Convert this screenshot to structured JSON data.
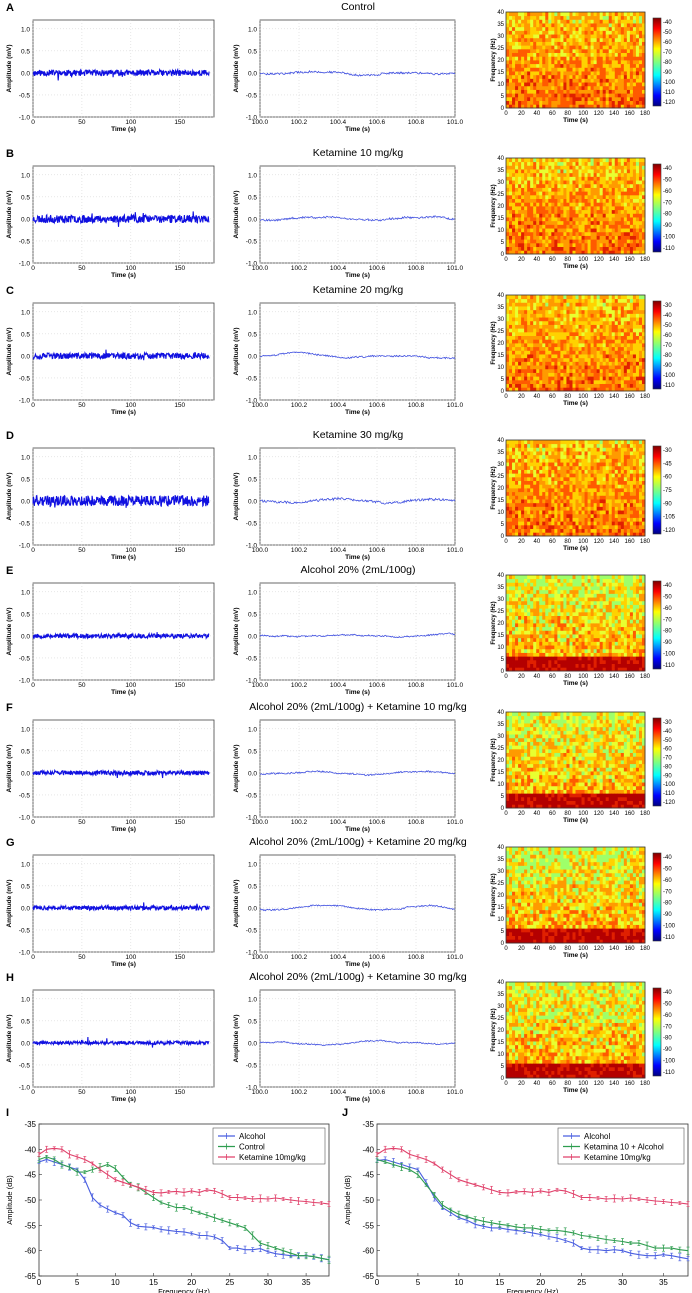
{
  "rows": [
    {
      "letter": "A",
      "title": "Control",
      "cbticks": [
        "-40",
        "-50",
        "-60",
        "-70",
        "-80",
        "-90",
        "-100",
        "-110",
        "-120"
      ],
      "seed": 11,
      "noiseA": 0.07,
      "noiseB": 0.02,
      "wander": 0.02,
      "alcohol": false
    },
    {
      "letter": "B",
      "title": "Ketamine 10 mg/kg",
      "cbticks": [
        "-40",
        "-50",
        "-60",
        "-70",
        "-80",
        "-90",
        "-100",
        "-110"
      ],
      "seed": 23,
      "noiseA": 0.09,
      "noiseB": 0.02,
      "wander": 0.04,
      "alcohol": false
    },
    {
      "letter": "C",
      "title": "Ketamine 20 mg/kg",
      "cbticks": [
        "-30",
        "-40",
        "-50",
        "-60",
        "-70",
        "-80",
        "-90",
        "-100",
        "-110"
      ],
      "seed": 37,
      "noiseA": 0.07,
      "noiseB": 0.015,
      "wander": 0.03,
      "alcohol": false
    },
    {
      "letter": "D",
      "title": "Ketamine 30 mg/kg",
      "cbticks": [
        "-30",
        "-45",
        "-60",
        "-75",
        "-90",
        "-105",
        "-120"
      ],
      "seed": 41,
      "noiseA": 0.12,
      "noiseB": 0.025,
      "wander": 0.04,
      "alcohol": false
    },
    {
      "letter": "E",
      "title": "Alcohol 20% (2mL/100g)",
      "cbticks": [
        "-40",
        "-50",
        "-60",
        "-70",
        "-80",
        "-90",
        "-100",
        "-110"
      ],
      "seed": 53,
      "noiseA": 0.05,
      "noiseB": 0.015,
      "wander": 0.03,
      "alcohol": true
    },
    {
      "letter": "F",
      "title": "Alcohol 20% (2mL/100g) + Ketamine 10 mg/kg",
      "cbticks": [
        "-30",
        "-40",
        "-50",
        "-60",
        "-70",
        "-80",
        "-90",
        "-100",
        "-110",
        "-120"
      ],
      "seed": 61,
      "noiseA": 0.05,
      "noiseB": 0.015,
      "wander": 0.03,
      "alcohol": true
    },
    {
      "letter": "G",
      "title": "Alcohol 20% (2mL/100g) + Ketamine 20 mg/kg",
      "cbticks": [
        "-40",
        "-50",
        "-60",
        "-70",
        "-80",
        "-90",
        "-100",
        "-110"
      ],
      "seed": 73,
      "noiseA": 0.05,
      "noiseB": 0.015,
      "wander": 0.05,
      "alcohol": true
    },
    {
      "letter": "H",
      "title": "Alcohol 20% (2mL/100g) + Ketamine 30 mg/kg",
      "cbticks": [
        "-40",
        "-50",
        "-60",
        "-70",
        "-80",
        "-90",
        "-100",
        "-110"
      ],
      "seed": 89,
      "noiseA": 0.04,
      "noiseB": 0.012,
      "wander": 0.02,
      "alcohol": true
    }
  ],
  "trace_full": {
    "xlabel": "Time (s)",
    "ylabel": "Amplitude (mV)",
    "xticks": [
      0,
      50,
      100,
      150
    ],
    "yticks": [
      -1.0,
      -0.5,
      0.0,
      0.5,
      1.0
    ],
    "xlim": [
      0,
      185
    ],
    "ylim": [
      -1.0,
      1.2
    ],
    "color": "#1010e0"
  },
  "trace_zoom": {
    "xlabel": "Time (s)",
    "ylabel": "Amplitude (mV)",
    "xticks": [
      "100.0",
      "100.2",
      "100.4",
      "100.6",
      "100.8",
      "101.0"
    ],
    "yticks": [
      -1.0,
      -0.5,
      0.0,
      0.5,
      1.0
    ],
    "xlim": [
      100.0,
      101.0
    ],
    "ylim": [
      -1.0,
      1.2
    ],
    "color": "#4050e0"
  },
  "spectrogram": {
    "xlabel": "Time (s)",
    "ylabel": "Frequency (Hz)",
    "xticks": [
      0,
      20,
      40,
      60,
      80,
      100,
      120,
      140,
      160,
      180
    ],
    "yticks": [
      0,
      5,
      10,
      15,
      20,
      25,
      30,
      35,
      40
    ]
  },
  "chart_data": [
    {
      "panel": "I",
      "type": "line",
      "xlabel": "Frequency (Hz)",
      "ylabel": "Amplitude (dB)",
      "xlim": [
        0,
        38
      ],
      "ylim": [
        -65,
        -35
      ],
      "xticks": [
        0,
        5,
        10,
        15,
        20,
        25,
        30,
        35
      ],
      "yticks": [
        -35,
        -40,
        -45,
        -50,
        -55,
        -60,
        -65
      ],
      "legend_position": "top-right",
      "x": [
        0,
        1,
        2,
        3,
        4,
        5,
        6,
        7,
        8,
        9,
        10,
        11,
        12,
        13,
        14,
        15,
        16,
        17,
        18,
        19,
        20,
        21,
        22,
        23,
        24,
        25,
        26,
        27,
        28,
        29,
        30,
        31,
        32,
        33,
        34,
        35,
        36,
        37,
        38
      ],
      "series": [
        {
          "name": "Alcohol",
          "color": "#4a5fe0",
          "values": [
            -42.5,
            -42,
            -42.5,
            -43,
            -43.5,
            -44,
            -46,
            -49.5,
            -51,
            -51.8,
            -52.5,
            -53,
            -54.5,
            -55.2,
            -55.3,
            -55.4,
            -55.8,
            -56,
            -56.2,
            -56.3,
            -56.6,
            -57,
            -57,
            -57.3,
            -58,
            -59.5,
            -59.5,
            -59.8,
            -59.8,
            -59.6,
            -60.2,
            -60.6,
            -60.8,
            -61,
            -61,
            -61,
            -61.2,
            -61.5,
            -61.8
          ]
        },
        {
          "name": "Control",
          "color": "#2e9d4f",
          "values": [
            -42,
            -41.5,
            -42,
            -43,
            -43.5,
            -44.5,
            -44.5,
            -44,
            -43.5,
            -43,
            -43.8,
            -45.5,
            -47,
            -47.5,
            -48.5,
            -49.5,
            -50.5,
            -51,
            -51.5,
            -51.5,
            -52,
            -52.5,
            -53,
            -53.5,
            -54,
            -54.5,
            -55,
            -55.5,
            -57,
            -58.5,
            -59,
            -59.5,
            -60,
            -60.5,
            -61,
            -61,
            -61.2,
            -61.5,
            -61.8
          ]
        },
        {
          "name": "Ketamine 10mg/kg",
          "color": "#e0406a",
          "values": [
            -41,
            -40,
            -39.8,
            -40,
            -41,
            -41.5,
            -42,
            -42.8,
            -44,
            -45,
            -46,
            -46.5,
            -47,
            -47.5,
            -48,
            -48.5,
            -48.6,
            -48.4,
            -48.3,
            -48.5,
            -48.2,
            -48.5,
            -48,
            -48.2,
            -48.8,
            -49.5,
            -49.5,
            -49.6,
            -49.8,
            -49.7,
            -49.8,
            -49.6,
            -49.8,
            -50,
            -50.2,
            -50.3,
            -50.5,
            -50.6,
            -50.8
          ]
        }
      ]
    },
    {
      "panel": "J",
      "type": "line",
      "xlabel": "Frequency (Hz)",
      "ylabel": "Amplitude (dB)",
      "xlim": [
        0,
        38
      ],
      "ylim": [
        -65,
        -35
      ],
      "xticks": [
        0,
        5,
        10,
        15,
        20,
        25,
        30,
        35
      ],
      "yticks": [
        -35,
        -40,
        -45,
        -50,
        -55,
        -60,
        -65
      ],
      "legend_position": "top-right",
      "x": [
        0,
        1,
        2,
        3,
        4,
        5,
        6,
        7,
        8,
        9,
        10,
        11,
        12,
        13,
        14,
        15,
        16,
        17,
        18,
        19,
        20,
        21,
        22,
        23,
        24,
        25,
        26,
        27,
        28,
        29,
        30,
        31,
        32,
        33,
        34,
        35,
        36,
        37,
        38
      ],
      "series": [
        {
          "name": "Alcohol",
          "color": "#4a5fe0",
          "values": [
            -42.2,
            -42,
            -42.5,
            -43,
            -43.5,
            -44,
            -46.5,
            -49.5,
            -51.5,
            -52.5,
            -53.5,
            -54,
            -54.8,
            -55.2,
            -55.5,
            -55.5,
            -55.8,
            -56,
            -56.2,
            -56.5,
            -56.8,
            -57.2,
            -57.5,
            -58,
            -58.5,
            -59.5,
            -59.8,
            -59.8,
            -60,
            -59.8,
            -60,
            -60.5,
            -60.8,
            -61,
            -61,
            -60.8,
            -61,
            -61.3,
            -61.6
          ]
        },
        {
          "name": "Ketamina  10 + Alcohol",
          "color": "#2e9d4f",
          "values": [
            -42,
            -42.5,
            -43,
            -43.5,
            -44,
            -45,
            -47,
            -49,
            -51,
            -52,
            -52.8,
            -53.3,
            -53.8,
            -54.2,
            -54.5,
            -54.8,
            -55,
            -55.3,
            -55.5,
            -55.5,
            -55.8,
            -56,
            -56,
            -56.2,
            -56.5,
            -57,
            -57.2,
            -57.5,
            -57.8,
            -58,
            -58.2,
            -58.5,
            -58.5,
            -59,
            -59.5,
            -59.5,
            -59.5,
            -59.8,
            -60
          ]
        },
        {
          "name": "Ketamine 10mg/kg",
          "color": "#e0406a",
          "values": [
            -41,
            -40,
            -39.8,
            -40,
            -41,
            -41.5,
            -42,
            -42.8,
            -44,
            -45,
            -46,
            -46.5,
            -47,
            -47.5,
            -48,
            -48.5,
            -48.6,
            -48.4,
            -48.3,
            -48.5,
            -48.2,
            -48.5,
            -48,
            -48.2,
            -48.8,
            -49.5,
            -49.5,
            -49.6,
            -49.8,
            -49.7,
            -49.8,
            -49.6,
            -49.8,
            -50,
            -50.2,
            -50.3,
            -50.5,
            -50.6,
            -50.8
          ]
        }
      ]
    }
  ]
}
